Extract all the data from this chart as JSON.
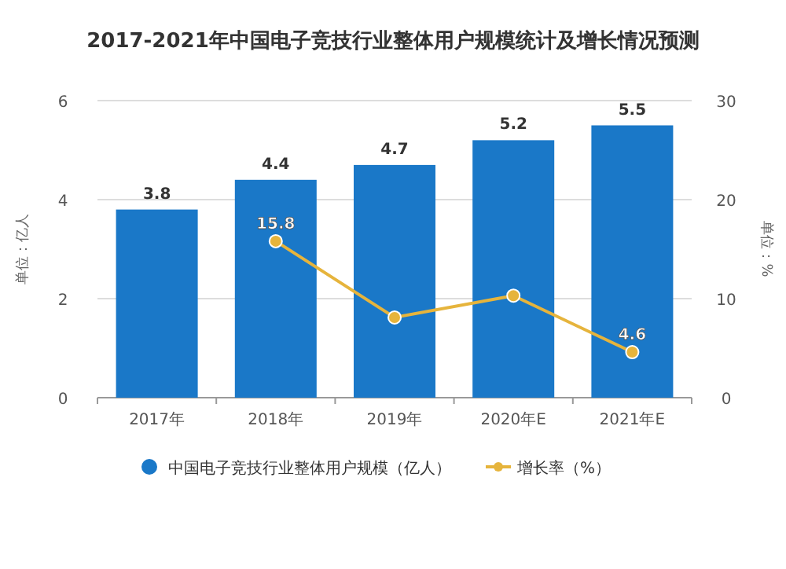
{
  "chart_data": {
    "type": "bar",
    "title": "2017-2021年中国电子竞技行业整体用户规模统计及增长情况预测",
    "categories": [
      "2017年",
      "2018年",
      "2019年",
      "2020年E",
      "2021年E"
    ],
    "series": [
      {
        "name": "中国电子竞技行业整体用户规模（亿人）",
        "color": "#1a78c8",
        "values": [
          3.8,
          4.4,
          4.7,
          5.2,
          5.5
        ],
        "data_labels": true
      },
      {
        "name": "增长率（%）",
        "type": "line",
        "axis": "y2",
        "color": "#e6b43c",
        "marker": "circle",
        "values": [
          null,
          15.8,
          8.1,
          10.3,
          4.6
        ],
        "value_labels": [
          null,
          "15.8",
          null,
          null,
          "4.6"
        ]
      }
    ],
    "ylabel": "单位：亿人",
    "y2label": "单位：%",
    "ylim": [
      0,
      6
    ],
    "yticks": [
      0,
      2,
      4,
      6
    ],
    "y2lim": [
      0,
      30
    ],
    "y2ticks": [
      0,
      10,
      20,
      30
    ],
    "grid": "y",
    "legend": "bottom"
  }
}
